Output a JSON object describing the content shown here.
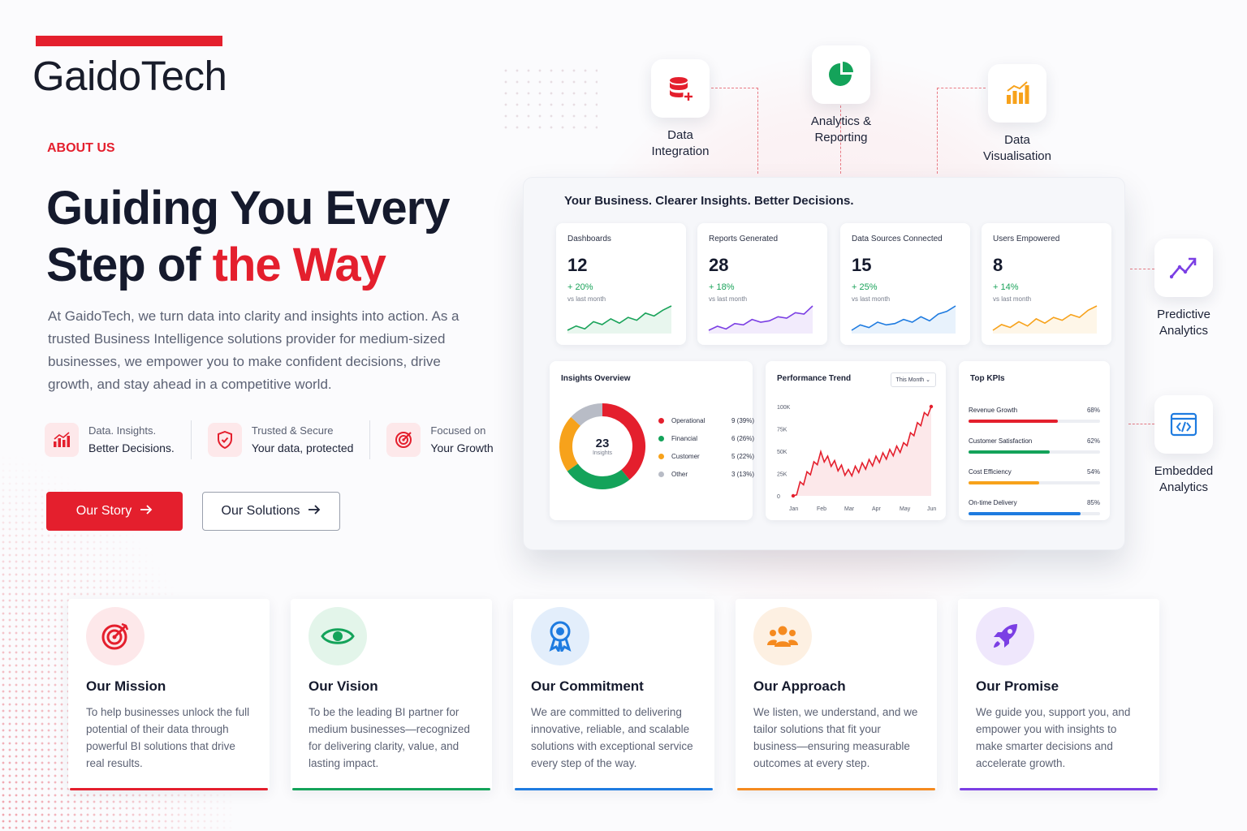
{
  "brand": {
    "name": "GaidoTech",
    "accent": "#e41f2d"
  },
  "hero": {
    "eyebrow": "ABOUT US",
    "title_line1": "Guiding You Every",
    "title_line2_a": "Step of ",
    "title_line2_b": "the Way",
    "intro": "At GaidoTech, we turn data into clarity and insights into action. As a trusted Business Intelligence solutions provider for medium-sized businesses, we empower you to make confident decisions, drive growth, and stay ahead in a competitive world."
  },
  "features": [
    {
      "line1": "Data. Insights.",
      "line2": "Better Decisions.",
      "icon": "chart-icon"
    },
    {
      "line1": "Trusted & Secure",
      "line2": "Your data, protected",
      "icon": "shield-icon"
    },
    {
      "line1": "Focused on",
      "line2": "Your Growth",
      "icon": "target-icon"
    }
  ],
  "buttons": {
    "primary": "Our Story",
    "secondary": "Our Solutions"
  },
  "services": [
    {
      "line1": "Data",
      "line2": "Integration",
      "icon": "database-icon",
      "color": "#e41f2d"
    },
    {
      "line1": "Analytics &",
      "line2": "Reporting",
      "icon": "pie-icon",
      "color": "#14a35a"
    },
    {
      "line1": "Data",
      "line2": "Visualisation",
      "icon": "bar-chart-icon",
      "color": "#f7a21b"
    },
    {
      "line1": "Predictive",
      "line2": "Analytics",
      "icon": "trend-icon",
      "color": "#7b3fe4"
    },
    {
      "line1": "Embedded",
      "line2": "Analytics",
      "icon": "code-icon",
      "color": "#1e7be0"
    }
  ],
  "dashboard": {
    "title": "Your Business. Clearer Insights. Better Decisions.",
    "kpis": [
      {
        "name": "Dashboards",
        "value": "12",
        "change": "+ 20%",
        "sub": "vs last month",
        "color": "#1aa35a",
        "spark": [
          5,
          8,
          6,
          11,
          9,
          13,
          10,
          14,
          12,
          17,
          15,
          19,
          22
        ]
      },
      {
        "name": "Reports Generated",
        "value": "28",
        "change": "+ 18%",
        "sub": "vs last month",
        "color": "#7b3fe4",
        "spark": [
          4,
          7,
          5,
          9,
          8,
          12,
          10,
          11,
          14,
          13,
          17,
          16,
          22
        ]
      },
      {
        "name": "Data Sources Connected",
        "value": "15",
        "change": "+ 25%",
        "sub": "vs last month",
        "color": "#1e7be0",
        "spark": [
          5,
          9,
          7,
          11,
          9,
          10,
          13,
          11,
          15,
          12,
          17,
          19,
          23
        ]
      },
      {
        "name": "Users Empowered",
        "value": "8",
        "change": "+ 14%",
        "sub": "vs last month",
        "color": "#f7a21b",
        "spark": [
          4,
          8,
          6,
          10,
          7,
          12,
          9,
          13,
          11,
          15,
          13,
          18,
          21
        ]
      }
    ],
    "insights": {
      "title": "Insights Overview",
      "center_value": "23",
      "center_label": "Insights",
      "segments": [
        {
          "name": "Operational",
          "count": "9 (39%)",
          "value": 9,
          "color": "#e41f2d"
        },
        {
          "name": "Financial",
          "count": "6 (26%)",
          "value": 6,
          "color": "#14a35a"
        },
        {
          "name": "Customer",
          "count": "5 (22%)",
          "value": 5,
          "color": "#f7a21b"
        },
        {
          "name": "Other",
          "count": "3 (13%)",
          "value": 3,
          "color": "#b8bcc6"
        }
      ]
    },
    "performance": {
      "title": "Performance Trend",
      "period": "This Month",
      "y_ticks": [
        "100K",
        "75K",
        "50K",
        "25K",
        "0"
      ],
      "x_ticks": [
        "Jan",
        "Feb",
        "Mar",
        "Apr",
        "May",
        "Jun"
      ]
    },
    "top_kpis": {
      "title": "Top KPIs",
      "items": [
        {
          "name": "Revenue Growth",
          "pct": "68%",
          "value": 0.68,
          "color": "#e41f2d"
        },
        {
          "name": "Customer Satisfaction",
          "pct": "62%",
          "value": 0.62,
          "color": "#14a35a"
        },
        {
          "name": "Cost Efficiency",
          "pct": "54%",
          "value": 0.54,
          "color": "#f7a21b"
        },
        {
          "name": "On-time Delivery",
          "pct": "85%",
          "value": 0.85,
          "color": "#1e7be0"
        }
      ]
    }
  },
  "chart_data": {
    "type": "line",
    "title": "Performance Trend",
    "x": [
      "Jan",
      "Feb",
      "Mar",
      "Apr",
      "May",
      "Jun"
    ],
    "ylim": [
      0,
      100000
    ],
    "series": [
      {
        "values": [
          0,
          45000,
          25000,
          40000,
          55000,
          100000
        ]
      }
    ]
  },
  "cards": [
    {
      "title": "Our Mission",
      "text": "To help businesses unlock the full potential of their data through powerful BI solutions that drive real results.",
      "icon": "target-icon",
      "color": "#e41f2d",
      "bg": "#fde8ea"
    },
    {
      "title": "Our Vision",
      "text": "To be the leading BI partner for medium businesses—recognized for delivering clarity, value, and lasting impact.",
      "icon": "eye-icon",
      "color": "#14a35a",
      "bg": "#e3f5ea"
    },
    {
      "title": "Our Commitment",
      "text": "We are committed to delivering innovative, reliable, and scalable solutions with exceptional service every step of the way.",
      "icon": "award-icon",
      "color": "#1e7be0",
      "bg": "#e3eefb"
    },
    {
      "title": "Our Approach",
      "text": "We listen, we understand, and we tailor solutions that fit your business—ensuring measurable outcomes at every step.",
      "icon": "users-icon",
      "color": "#f58a1f",
      "bg": "#fdf0e2"
    },
    {
      "title": "Our Promise",
      "text": "We guide you, support you, and empower you with insights to make smarter decisions and accelerate growth.",
      "icon": "rocket-icon",
      "color": "#7b3fe4",
      "bg": "#efe7fc"
    }
  ]
}
